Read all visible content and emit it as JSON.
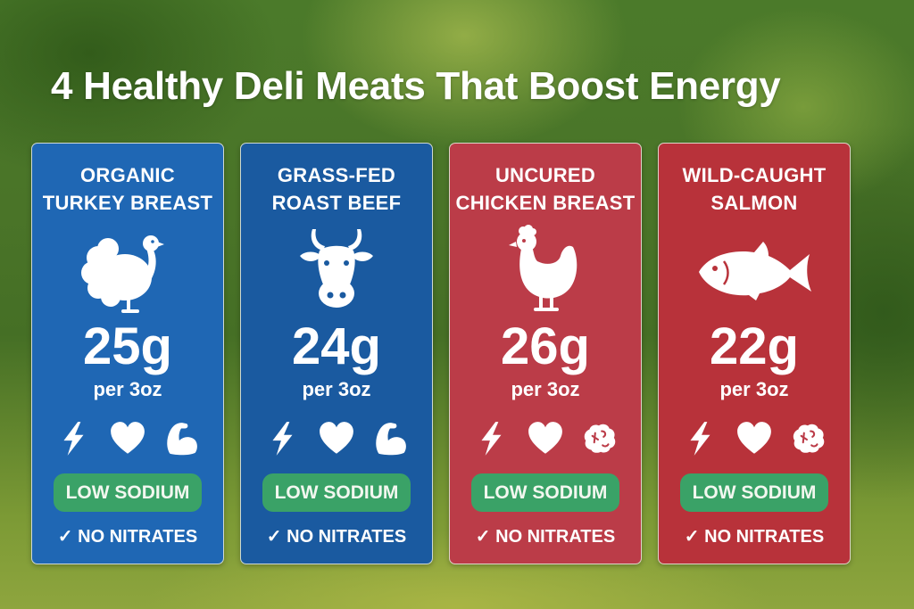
{
  "title": "4 Healthy Deli Meats That Boost Energy",
  "cards": [
    {
      "line1": "ORGANIC",
      "line2": "TURKEY BREAST",
      "animal_icon": "turkey-icon",
      "protein": "25g",
      "serving": "per 3oz",
      "benefit_icons": [
        "lightning-icon",
        "heart-icon",
        "muscle-icon"
      ],
      "badge": "LOW SODIUM",
      "check": "✓",
      "note": "NO NITRATES",
      "color": "#1f67b4"
    },
    {
      "line1": "GRASS-FED",
      "line2": "ROAST BEEF",
      "animal_icon": "cow-icon",
      "protein": "24g",
      "serving": "per 3oz",
      "benefit_icons": [
        "lightning-icon",
        "heart-icon",
        "muscle-icon"
      ],
      "badge": "LOW SODIUM",
      "check": "✓",
      "note": "NO NITRATES",
      "color": "#1a5aa0"
    },
    {
      "line1": "UNCURED",
      "line2": "CHICKEN BREAST",
      "animal_icon": "chicken-icon",
      "protein": "26g",
      "serving": "per 3oz",
      "benefit_icons": [
        "lightning-icon",
        "heart-icon",
        "brain-icon"
      ],
      "badge": "LOW SODIUM",
      "check": "✓",
      "note": "NO NITRATES",
      "color": "#bb3c48"
    },
    {
      "line1": "WILD-CAUGHT",
      "line2": "SALMON",
      "animal_icon": "fish-icon",
      "protein": "22g",
      "serving": "per 3oz",
      "benefit_icons": [
        "lightning-icon",
        "heart-icon",
        "brain-icon"
      ],
      "badge": "LOW SODIUM",
      "check": "✓",
      "note": "NO NITRATES",
      "color": "#b8323a"
    }
  ],
  "colors": {
    "badge_green": "#3aa267",
    "text": "#ffffff"
  }
}
